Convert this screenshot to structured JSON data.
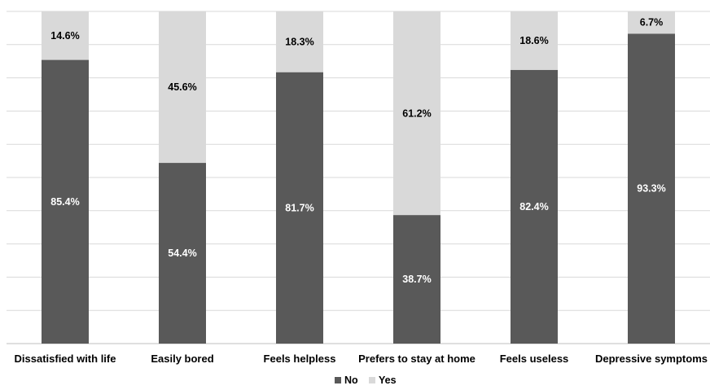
{
  "chart_data": {
    "type": "bar",
    "stacked": true,
    "percent_stacked": true,
    "categories": [
      "Dissatisfied with life",
      "Easily bored",
      "Feels helpless",
      "Prefers to stay at home",
      "Feels useless",
      "Depressive symptoms"
    ],
    "series": [
      {
        "name": "No",
        "values": [
          85.4,
          54.4,
          81.7,
          38.7,
          82.4,
          93.3
        ],
        "labels": [
          "85.4%",
          "54.4%",
          "81.7%",
          "38.7%",
          "82.4%",
          "93.3%"
        ],
        "color": "#595959",
        "label_color": "#ffffff"
      },
      {
        "name": "Yes",
        "values": [
          14.6,
          45.6,
          18.3,
          61.2,
          18.6,
          6.7
        ],
        "labels": [
          "14.6%",
          "45.6%",
          "18.3%",
          "61.2%",
          "18.6%",
          "6.7%"
        ],
        "color": "#d9d9d9",
        "label_color": "#000000"
      }
    ],
    "ylim": [
      0,
      100
    ],
    "grid": true,
    "legend": "bottom-center"
  }
}
